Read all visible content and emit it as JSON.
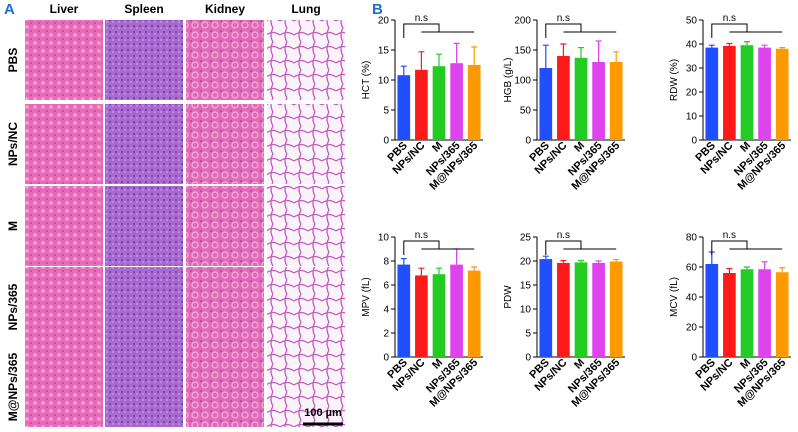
{
  "panel_a": {
    "label": "A",
    "columns": [
      "Liver",
      "Spleen",
      "Kidney",
      "Lung"
    ],
    "rows": [
      "PBS",
      "NPs/NC",
      "M",
      "NPs/365",
      "M@NPs/365"
    ],
    "scale_bar": "100 µm"
  },
  "panel_b_label": "B",
  "chart_data": [
    {
      "type": "bar",
      "ylabel": "HCT (%)",
      "annotation": "n.s",
      "categories": [
        "PBS",
        "NPs/NC",
        "M",
        "NPs/365",
        "M@NPs/365"
      ],
      "colors": [
        "#1f4fff",
        "#ff1a1a",
        "#22cc22",
        "#dd44ee",
        "#ff9900"
      ],
      "values": [
        10.8,
        11.7,
        12.3,
        12.8,
        12.5
      ],
      "errors": [
        1.5,
        3,
        2,
        3.3,
        3
      ],
      "ylim": [
        0,
        20
      ],
      "yticks": [
        0,
        5,
        10,
        15,
        20
      ]
    },
    {
      "type": "bar",
      "ylabel": "HGB (g/L)",
      "annotation": "n.s",
      "categories": [
        "PBS",
        "NPs/NC",
        "M",
        "NPs/365",
        "M@NPs/365"
      ],
      "colors": [
        "#1f4fff",
        "#ff1a1a",
        "#22cc22",
        "#dd44ee",
        "#ff9900"
      ],
      "values": [
        120,
        140,
        137,
        130,
        130
      ],
      "errors": [
        38,
        20,
        17,
        35,
        17
      ],
      "ylim": [
        0,
        200
      ],
      "yticks": [
        0,
        50,
        100,
        150,
        200
      ]
    },
    {
      "type": "bar",
      "ylabel": "RDW (%)",
      "annotation": "n.s",
      "categories": [
        "PBS",
        "NPs/NC",
        "M",
        "NPs/365",
        "M@NPs/365"
      ],
      "colors": [
        "#1f4fff",
        "#ff1a1a",
        "#22cc22",
        "#dd44ee",
        "#ff9900"
      ],
      "values": [
        38.5,
        39.2,
        39.5,
        38.5,
        38
      ],
      "errors": [
        1,
        1,
        1.5,
        1,
        0.5
      ],
      "ylim": [
        0,
        50
      ],
      "yticks": [
        0,
        10,
        20,
        30,
        40,
        50
      ]
    },
    {
      "type": "bar",
      "ylabel": "MPV (fL)",
      "annotation": "n.s",
      "categories": [
        "PBS",
        "NPs/NC",
        "M",
        "NPs/365",
        "M@NPs/365"
      ],
      "colors": [
        "#1f4fff",
        "#ff1a1a",
        "#22cc22",
        "#dd44ee",
        "#ff9900"
      ],
      "values": [
        7.7,
        6.8,
        6.9,
        7.7,
        7.2
      ],
      "errors": [
        0.5,
        0.6,
        0.5,
        1.3,
        0.3
      ],
      "ylim": [
        0,
        10
      ],
      "yticks": [
        0,
        2,
        4,
        6,
        8,
        10
      ]
    },
    {
      "type": "bar",
      "ylabel": "PDW",
      "annotation": "n.s",
      "categories": [
        "PBS",
        "NPs/NC",
        "M",
        "NPs/365",
        "M@NPs/365"
      ],
      "colors": [
        "#1f4fff",
        "#ff1a1a",
        "#22cc22",
        "#dd44ee",
        "#ff9900"
      ],
      "values": [
        20.4,
        19.6,
        19.7,
        19.6,
        19.9
      ],
      "errors": [
        0.6,
        0.5,
        0.4,
        0.4,
        0.4
      ],
      "ylim": [
        0,
        25
      ],
      "yticks": [
        0,
        5,
        10,
        15,
        20,
        25
      ]
    },
    {
      "type": "bar",
      "ylabel": "MCV (fL)",
      "annotation": "n.s",
      "categories": [
        "PBS",
        "NPs/NC",
        "M",
        "NPs/365",
        "M@NPs/365"
      ],
      "colors": [
        "#1f4fff",
        "#ff1a1a",
        "#22cc22",
        "#dd44ee",
        "#ff9900"
      ],
      "values": [
        62,
        56,
        58.5,
        58.5,
        56.5
      ],
      "errors": [
        8,
        3,
        1.5,
        5,
        3
      ],
      "ylim": [
        0,
        80
      ],
      "yticks": [
        0,
        20,
        40,
        60,
        80
      ]
    }
  ]
}
